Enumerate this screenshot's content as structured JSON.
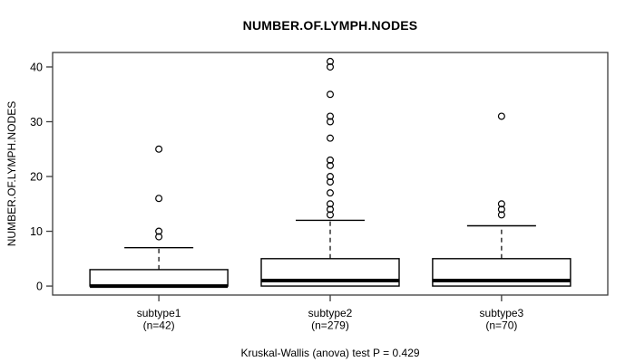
{
  "title": "NUMBER.OF.LYMPH.NODES",
  "caption": "Kruskal-Wallis (anova) test P = 0.429",
  "chart_data": {
    "type": "boxplot",
    "title": "NUMBER.OF.LYMPH.NODES",
    "xlabel": "",
    "ylabel": "NUMBER.OF.LYMPH.NODES",
    "yticks": [
      0,
      10,
      20,
      30,
      40
    ],
    "ylim": [
      0,
      41
    ],
    "grid": false,
    "legend": "none",
    "annotation": "Kruskal-Wallis (anova) test P = 0.429",
    "colors": {
      "line": "#000000",
      "box_fill": "#ffffff",
      "frame": "#3c3c3c",
      "background": "#ffffff"
    },
    "groups": [
      {
        "label": "subtype1",
        "sublabel": "(n=42)",
        "q1": 0,
        "median": 0,
        "q3": 3,
        "whisker_low": 0,
        "whisker_high": 7,
        "outliers": [
          9,
          10,
          16,
          25
        ]
      },
      {
        "label": "subtype2",
        "sublabel": "(n=279)",
        "q1": 0,
        "median": 1,
        "q3": 5,
        "whisker_low": 0,
        "whisker_high": 12,
        "outliers": [
          13,
          14,
          15,
          17,
          19,
          20,
          22,
          23,
          27,
          30,
          31,
          35,
          40,
          41
        ]
      },
      {
        "label": "subtype3",
        "sublabel": "(n=70)",
        "q1": 0,
        "median": 1,
        "q3": 5,
        "whisker_low": 0,
        "whisker_high": 11,
        "outliers": [
          13,
          14,
          15,
          31
        ]
      }
    ]
  }
}
